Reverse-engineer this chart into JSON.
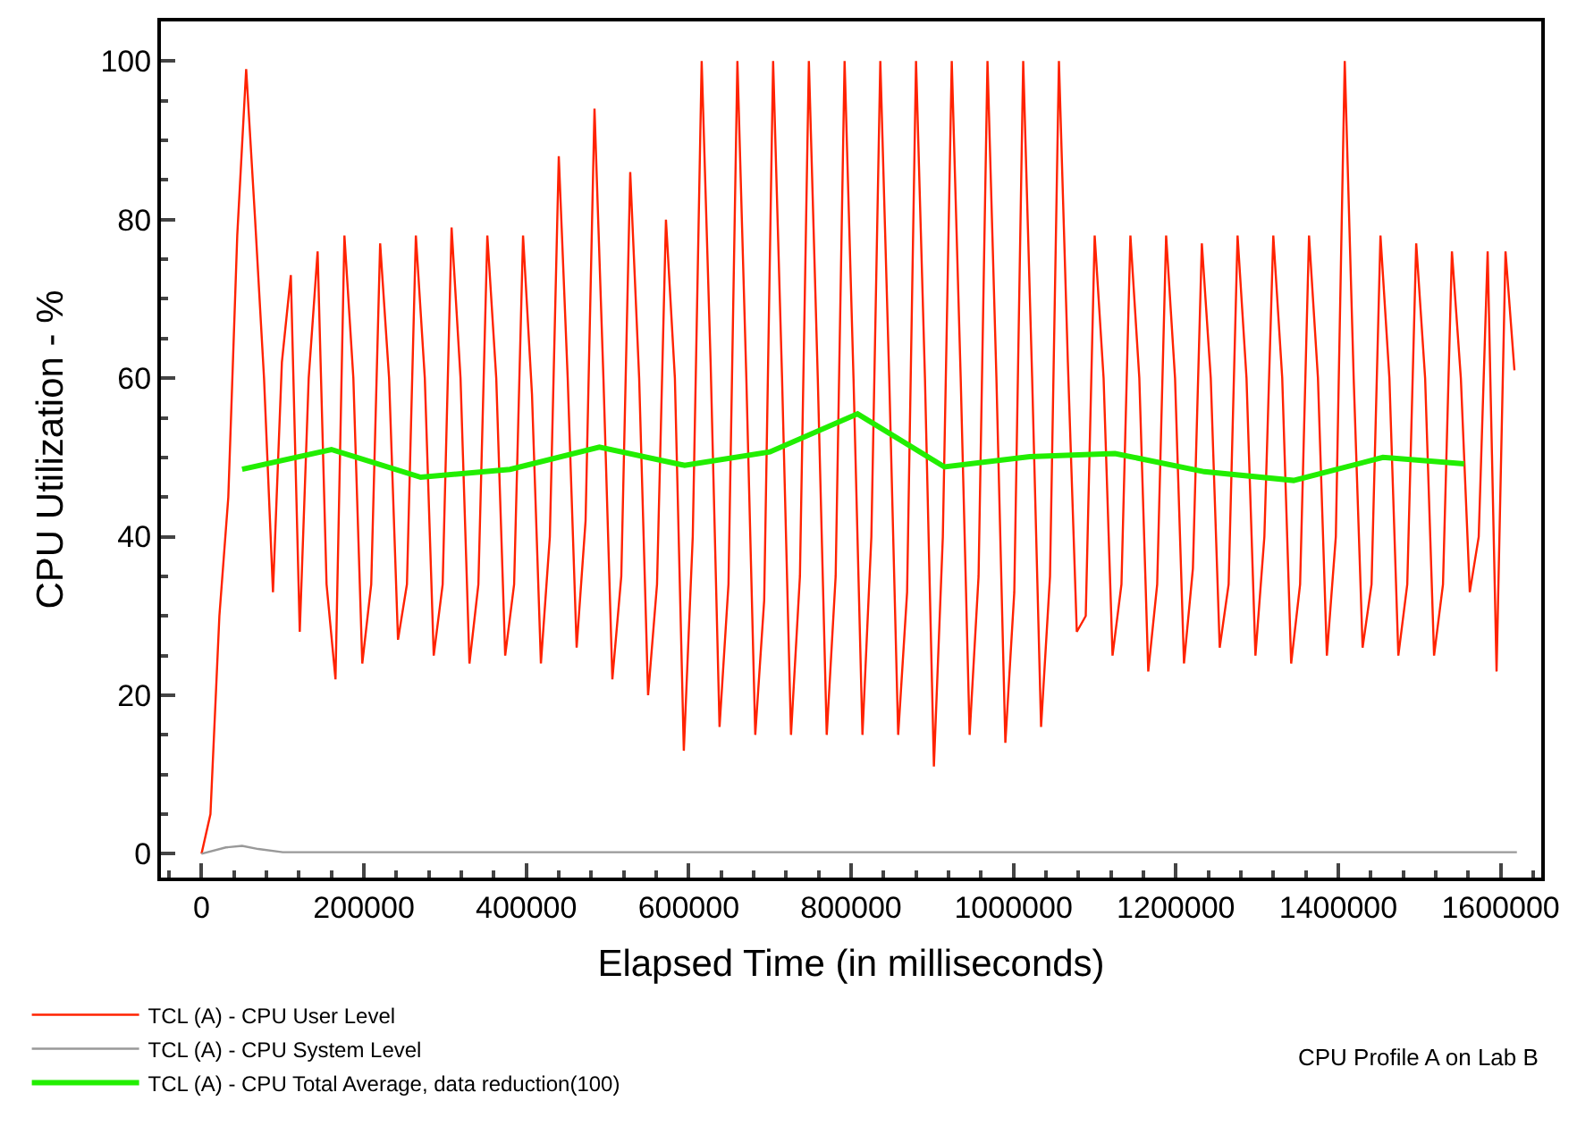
{
  "chart_data": {
    "type": "line",
    "xlabel": "Elapsed Time (in milliseconds)",
    "ylabel": "CPU Utilization - %",
    "annotations": [
      "CPU Profile A on Lab B"
    ],
    "xlim": [
      -50000,
      1650000
    ],
    "xticks": [
      0,
      200000,
      400000,
      600000,
      800000,
      1000000,
      1200000,
      1400000,
      1600000
    ],
    "ylim": [
      -3,
      105
    ],
    "yticks": [
      0,
      20,
      40,
      60,
      80,
      100
    ],
    "legend": "bottom left",
    "marker": "none",
    "line_style": "solid",
    "series": [
      {
        "name": "TCL (A) - CPU User Level",
        "color": "#ff2200",
        "x": [
          0,
          11000,
          22000,
          33000,
          44000,
          55000,
          66000,
          77000,
          88000,
          99000,
          110000,
          121000,
          132000,
          143000,
          154000,
          165000,
          176000,
          187000,
          198000,
          209000,
          220000,
          231000,
          242000,
          253000,
          264000,
          275000,
          286000,
          297000,
          308000,
          319000,
          330000,
          341000,
          352000,
          363000,
          374000,
          385000,
          396000,
          407000,
          418000,
          429000,
          440000,
          451000,
          462000,
          473000,
          484000,
          495000,
          506000,
          517000,
          528000,
          539000,
          550000,
          561000,
          572000,
          583000,
          594000,
          605000,
          616000,
          627000,
          638000,
          649000,
          660000,
          671000,
          682000,
          693000,
          704000,
          715000,
          726000,
          737000,
          748000,
          759000,
          770000,
          781000,
          792000,
          803000,
          814000,
          825000,
          836000,
          847000,
          858000,
          869000,
          880000,
          891000,
          902000,
          913000,
          924000,
          935000,
          946000,
          957000,
          968000,
          979000,
          990000,
          1001000,
          1012000,
          1023000,
          1034000,
          1045000,
          1056000,
          1067000,
          1078000,
          1089000,
          1100000,
          1111000,
          1122000,
          1133000,
          1144000,
          1155000,
          1166000,
          1177000,
          1188000,
          1199000,
          1210000,
          1221000,
          1232000,
          1243000,
          1254000,
          1265000,
          1276000,
          1287000,
          1298000,
          1309000,
          1320000,
          1331000,
          1342000,
          1353000,
          1364000,
          1375000,
          1386000,
          1397000,
          1408000,
          1419000,
          1430000,
          1441000,
          1452000,
          1463000,
          1474000,
          1485000,
          1496000,
          1507000,
          1518000,
          1529000,
          1540000,
          1551000,
          1562000,
          1573000,
          1584000,
          1595000,
          1606000,
          1617000
        ],
        "values": [
          0,
          5,
          30,
          45,
          78,
          99,
          80,
          60,
          33,
          62,
          73,
          28,
          60,
          76,
          34,
          22,
          78,
          60,
          24,
          34,
          77,
          60,
          27,
          34,
          78,
          60,
          25,
          34,
          79,
          60,
          24,
          34,
          78,
          60,
          25,
          34,
          78,
          58,
          24,
          40,
          88,
          60,
          26,
          42,
          94,
          60,
          22,
          35,
          86,
          60,
          20,
          34,
          80,
          60,
          13,
          40,
          100,
          62,
          16,
          34,
          100,
          60,
          15,
          32,
          100,
          60,
          15,
          35,
          100,
          60,
          15,
          35,
          100,
          60,
          15,
          40,
          100,
          60,
          15,
          33,
          100,
          60,
          11,
          40,
          100,
          60,
          15,
          35,
          100,
          60,
          14,
          33,
          100,
          60,
          16,
          35,
          100,
          62,
          28,
          30,
          78,
          60,
          25,
          34,
          78,
          60,
          23,
          34,
          78,
          60,
          24,
          36,
          77,
          60,
          26,
          34,
          78,
          60,
          25,
          40,
          78,
          60,
          24,
          34,
          78,
          60,
          25,
          40,
          100,
          60,
          26,
          34,
          78,
          60,
          25,
          34,
          77,
          60,
          25,
          34,
          76,
          60,
          33,
          40,
          76,
          23,
          76,
          61
        ]
      },
      {
        "name": "TCL (A) - CPU System Level",
        "color": "#999999",
        "x": [
          0,
          30000,
          50000,
          70000,
          100000,
          300000,
          600000,
          900000,
          1200000,
          1620000
        ],
        "values": [
          0,
          0.8,
          1,
          0.6,
          0.2,
          0.2,
          0.2,
          0.2,
          0.2,
          0.2
        ]
      },
      {
        "name": "TCL (A) - CPU Total Average, data reduction(100)",
        "color": "#22ee00",
        "x": [
          50000,
          160000,
          270000,
          380000,
          490000,
          595000,
          700000,
          808000,
          915000,
          1020000,
          1125000,
          1235000,
          1345000,
          1455000,
          1555000
        ],
        "values": [
          48.5,
          51,
          47.5,
          48.5,
          51.3,
          49,
          50.7,
          55.5,
          48.8,
          50.1,
          50.5,
          48.2,
          47.1,
          50,
          49.2
        ]
      }
    ]
  }
}
